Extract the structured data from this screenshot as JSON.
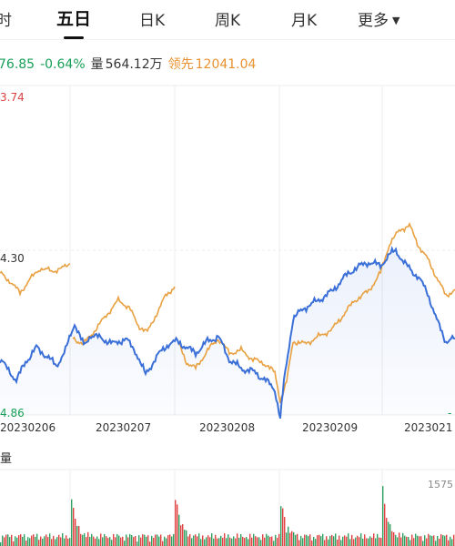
{
  "tabs": [
    {
      "label": "时",
      "active": false
    },
    {
      "label": "五日",
      "active": true
    },
    {
      "label": "日K",
      "active": false
    },
    {
      "label": "周K",
      "active": false
    },
    {
      "label": "月K",
      "active": false
    },
    {
      "label": "更多",
      "active": false
    }
  ],
  "more_caret": "▼",
  "info": {
    "price_partial": "76.85",
    "change_pct": "-0.64%",
    "volume_label": "量",
    "volume_value": "564.12万",
    "lead_label": "领先",
    "lead_value": "12041.04"
  },
  "price_axis": {
    "top": "3.74",
    "mid": "4.30",
    "bottom": "4.86",
    "right_bottom": "-"
  },
  "dates": [
    "20230206",
    "20230207",
    "20230208",
    "20230209",
    "2023021"
  ],
  "volume_section": {
    "label": "量",
    "max_value": "1575"
  },
  "colors": {
    "price_line": "#3a6fd8",
    "lead_line": "#e8a040",
    "up_bar": "#e04040",
    "down_bar": "#30a060",
    "top_label": "#d94040",
    "bottom_label": "#18a058"
  }
}
